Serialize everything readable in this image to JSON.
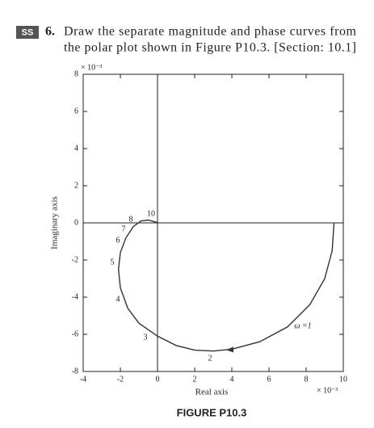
{
  "problem": {
    "badge": "SS",
    "number": "6.",
    "line1": "Draw the separate magnitude and phase curves from",
    "line2": "the polar plot shown in Figure P10.3. [Section: 10.1]"
  },
  "caption": "FIGURE P10.3",
  "chart_data": {
    "type": "line",
    "xlabel": "Real axis",
    "ylabel": "Imaginary axis",
    "x_scale_label": "× 10⁻³",
    "y_scale_label": "× 10⁻³",
    "xlim": [
      -4,
      10
    ],
    "ylim": [
      -8,
      8
    ],
    "xticks": [
      -4,
      -2,
      0,
      2,
      4,
      6,
      8,
      10
    ],
    "yticks": [
      -8,
      -6,
      -4,
      -2,
      0,
      2,
      4,
      6,
      8
    ],
    "series": [
      {
        "name": "ω",
        "color": "#333333",
        "x": [
          9.5,
          9.4,
          9.0,
          8.2,
          7,
          5.5,
          4,
          3,
          2,
          1,
          0,
          -1,
          -1.6,
          -2,
          -2.1,
          -2.0,
          -1.7,
          -1.3,
          -0.9,
          -0.5,
          -0.1,
          0
        ],
        "values": [
          0,
          -1.5,
          -3,
          -4.4,
          -5.6,
          -6.4,
          -6.8,
          -6.9,
          -6.85,
          -6.6,
          -6.1,
          -5.4,
          -4.6,
          -3.5,
          -2.5,
          -1.6,
          -0.8,
          -0.2,
          0.1,
          0.15,
          0.05,
          0
        ]
      }
    ],
    "annotations": [
      "10",
      "8",
      "7",
      "6",
      "5",
      "4",
      "3",
      "2",
      "ω =1"
    ]
  }
}
